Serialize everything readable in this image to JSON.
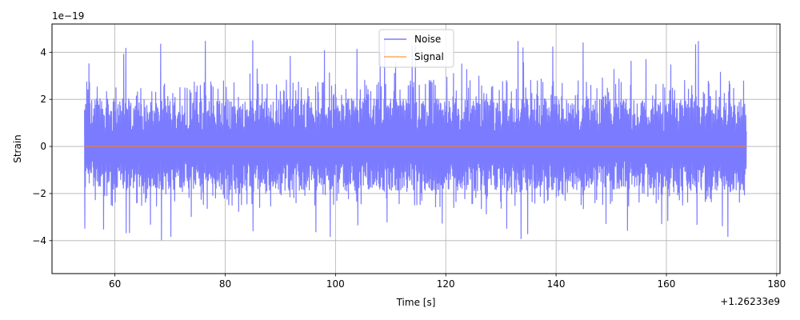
{
  "chart_data": {
    "type": "line",
    "title": "",
    "xlabel": "Time [s]",
    "ylabel": "Strain",
    "x_offset_label": "+1.26233e9",
    "y_multiplier_label": "1e−19",
    "xlim": [
      48.6,
      180.6
    ],
    "ylim": [
      -5.4,
      5.2
    ],
    "grid": true,
    "legend_placement": "upper center",
    "x_ticks": [
      60,
      80,
      100,
      120,
      140,
      160,
      180
    ],
    "y_ticks": [
      -4,
      -2,
      0,
      2,
      4
    ],
    "x_tick_labels": [
      "60",
      "80",
      "100",
      "120",
      "140",
      "160",
      "180"
    ],
    "y_tick_labels": [
      "−4",
      "−2",
      "0",
      "2",
      "4"
    ],
    "series": [
      {
        "name": "Noise",
        "color": "#7b7bff",
        "x_range": [
          54.5,
          174.5
        ],
        "typical_envelope": [
          -2.3,
          2.6
        ],
        "peak_max": 4.7,
        "peak_min": -4.9
      },
      {
        "name": "Signal",
        "color": "#ff7f0e",
        "x_range": [
          54.5,
          174.5
        ],
        "values": [
          0,
          0
        ]
      }
    ]
  }
}
